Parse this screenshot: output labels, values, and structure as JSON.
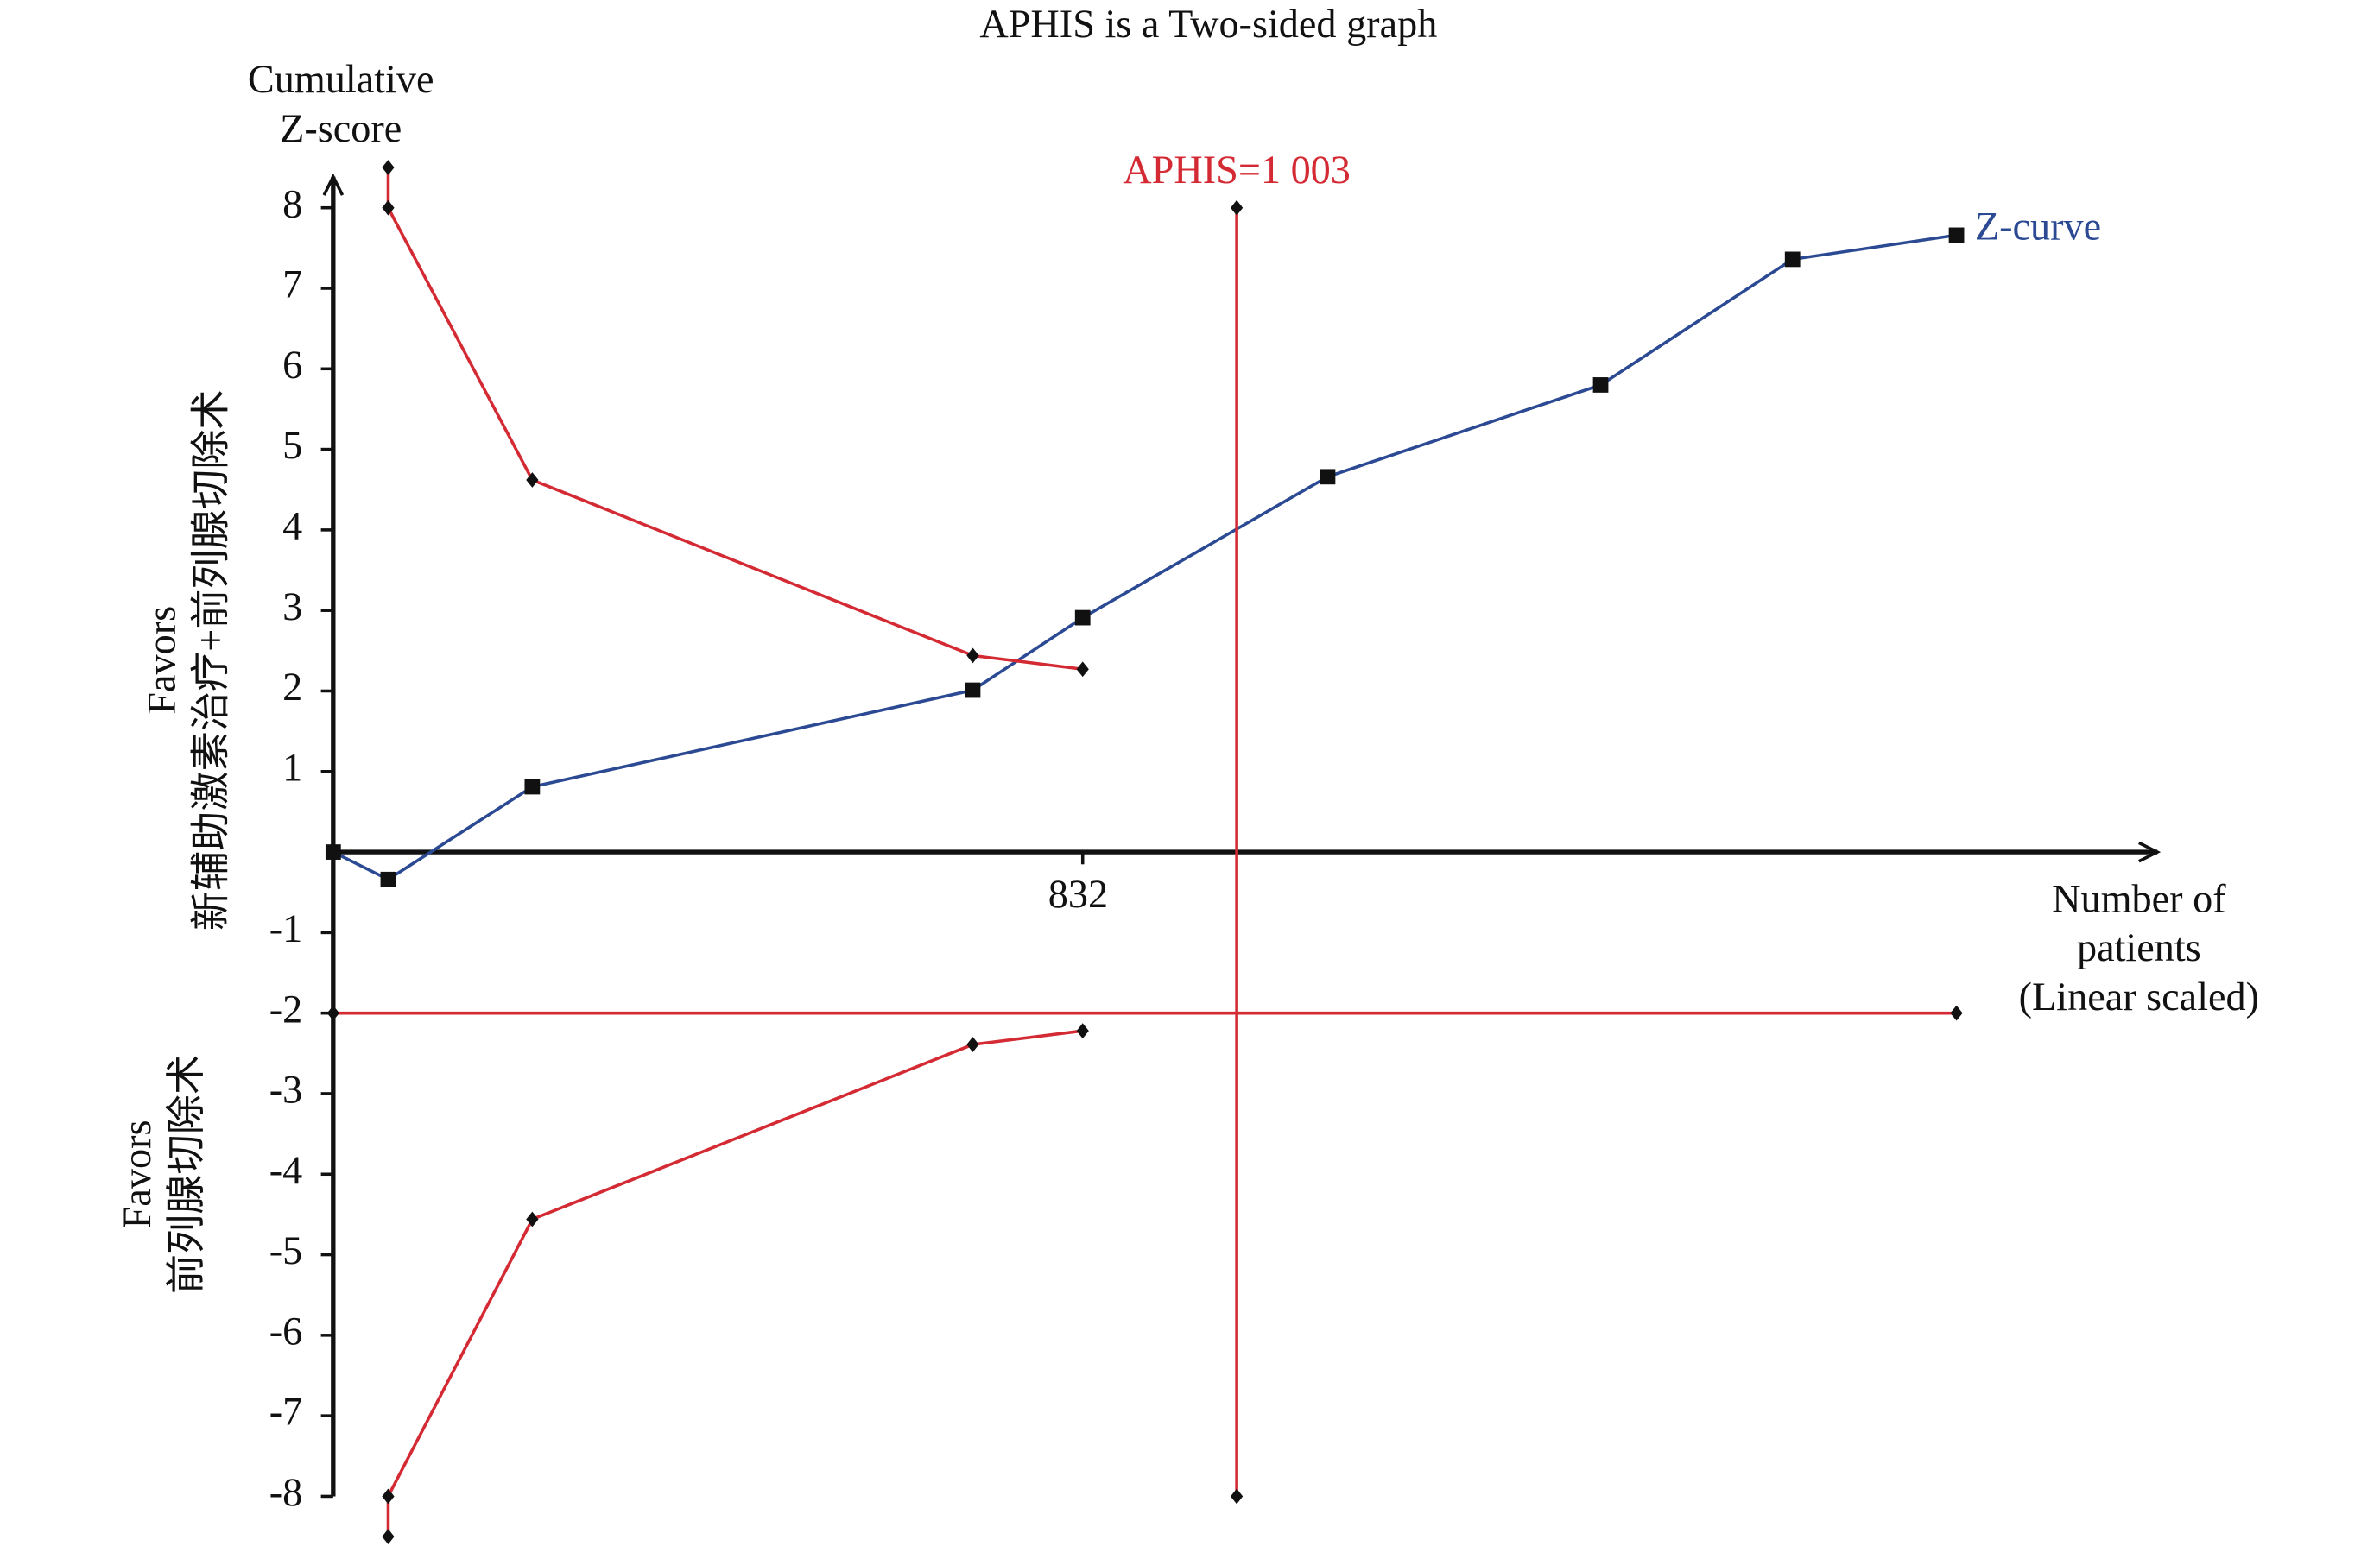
{
  "chart_data": {
    "type": "line",
    "title": "APHIS is a Two-sided graph",
    "y_label": [
      "Cumulative",
      "Z-score"
    ],
    "x_label": [
      "Number of",
      "patients",
      "(Linear scaled)"
    ],
    "favors_upper": [
      "Favors",
      "新辅助激素治疗+前列腺切除术"
    ],
    "favors_lower": [
      "Favors",
      "前列腺切除术"
    ],
    "xlim": [
      0,
      2025
    ],
    "ylim": [
      -8.5,
      8.5
    ],
    "xticks": [
      832
    ],
    "yticks": [
      -8,
      -7,
      -6,
      -5,
      -4,
      -3,
      -2,
      -1,
      1,
      2,
      3,
      4,
      5,
      6,
      7,
      8
    ],
    "series": [
      {
        "name": "Z-curve",
        "color": "#2b4a93",
        "marker": "square",
        "x": [
          0,
          61,
          221,
          710,
          832,
          1104,
          1407,
          1620,
          1802
        ],
        "values": [
          0,
          -0.34,
          0.81,
          2.01,
          2.91,
          4.66,
          5.8,
          7.36,
          7.66
        ]
      },
      {
        "color": "#d42a34",
        "marker": "diamond",
        "x": [
          61,
          61,
          221,
          710,
          832
        ],
        "values": [
          8.5,
          8,
          4.62,
          2.44,
          2.27
        ]
      },
      {
        "color": "#d42a34",
        "marker": "diamond",
        "x": [
          61,
          61,
          221,
          710,
          832
        ],
        "values": [
          -8.5,
          -8,
          -4.56,
          -2.39,
          -2.22
        ]
      },
      {
        "color": "#d42a34",
        "marker": "diamond",
        "x": [
          0,
          1802
        ],
        "values": [
          -2,
          -2
        ]
      }
    ],
    "aphis": {
      "label": "APHIS=1 003",
      "color": "#d42a34",
      "x": 1003,
      "y": [
        -8,
        8
      ]
    }
  }
}
